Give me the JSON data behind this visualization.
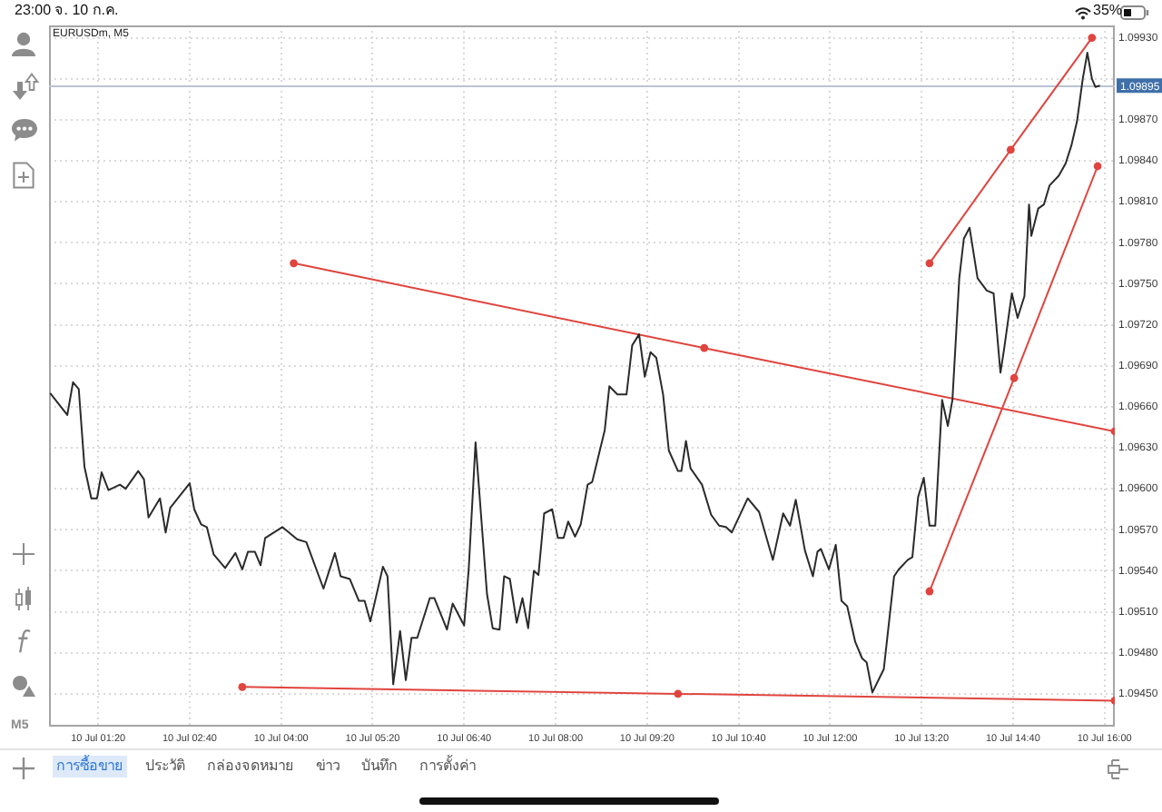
{
  "chart_data": {
    "type": "line",
    "title": "EURUSDm, M5",
    "xlim": [
      "--07-10T00:37",
      "--07-10T16:09"
    ],
    "xticks": [
      {
        "value": "--07-10T01:20",
        "label": "10 Jul 01:20"
      },
      {
        "value": "--07-10T02:40",
        "label": "10 Jul 02:40"
      },
      {
        "value": "--07-10T04:00",
        "label": "10 Jul 04:00"
      },
      {
        "value": "--07-10T05:20",
        "label": "10 Jul 05:20"
      },
      {
        "value": "--07-10T06:40",
        "label": "10 Jul 06:40"
      },
      {
        "value": "--07-10T08:00",
        "label": "10 Jul 08:00"
      },
      {
        "value": "--07-10T09:20",
        "label": "10 Jul 09:20"
      },
      {
        "value": "--07-10T10:40",
        "label": "10 Jul 10:40"
      },
      {
        "value": "--07-10T12:00",
        "label": "10 Jul 12:00"
      },
      {
        "value": "--07-10T13:20",
        "label": "10 Jul 13:20"
      },
      {
        "value": "--07-10T14:40",
        "label": "10 Jul 14:40"
      },
      {
        "value": "--07-10T16:00",
        "label": "10 Jul 16:00"
      }
    ],
    "ylim": [
      1.09426,
      1.09939
    ],
    "yticks": [
      {
        "value": 1.0945,
        "label": "1.09450"
      },
      {
        "value": 1.0948,
        "label": "1.09480"
      },
      {
        "value": 1.0951,
        "label": "1.09510"
      },
      {
        "value": 1.0954,
        "label": "1.09540"
      },
      {
        "value": 1.0957,
        "label": "1.09570"
      },
      {
        "value": 1.096,
        "label": "1.09600"
      },
      {
        "value": 1.0963,
        "label": "1.09630"
      },
      {
        "value": 1.0966,
        "label": "1.09660"
      },
      {
        "value": 1.0969,
        "label": "1.09690"
      },
      {
        "value": 1.0972,
        "label": "1.09720"
      },
      {
        "value": 1.0975,
        "label": "1.09750"
      },
      {
        "value": 1.0978,
        "label": "1.09780"
      },
      {
        "value": 1.0981,
        "label": "1.09810"
      },
      {
        "value": 1.0984,
        "label": "1.09840"
      },
      {
        "value": 1.0987,
        "label": "1.09870"
      },
      {
        "value": 1.099,
        "label": null
      },
      {
        "value": 1.0993,
        "label": "1.09930"
      }
    ],
    "grid": true,
    "series": [
      {
        "color": "#2b2b2b",
        "x": [
          "--07-10T00:38",
          "--07-10T00:53",
          "--07-10T00:58",
          "--07-10T01:03",
          "--07-10T01:08",
          "--07-10T01:14",
          "--07-10T01:19",
          "--07-10T01:23",
          "--07-10T01:29",
          "--07-10T01:39",
          "--07-10T01:44",
          "--07-10T01:55",
          "--07-10T02:00",
          "--07-10T02:04",
          "--07-10T02:14",
          "--07-10T02:19",
          "--07-10T02:23",
          "--07-10T02:40",
          "--07-10T02:44",
          "--07-10T02:50",
          "--07-10T02:55",
          "--07-10T03:01",
          "--07-10T03:11",
          "--07-10T03:20",
          "--07-10T03:26",
          "--07-10T03:31",
          "--07-10T03:37",
          "--07-10T03:42",
          "--07-10T03:46",
          "--07-10T04:01",
          "--07-10T04:14",
          "--07-10T04:22",
          "--07-10T04:37",
          "--07-10T04:47",
          "--07-10T04:52",
          "--07-10T05:00",
          "--07-10T05:08",
          "--07-10T05:13",
          "--07-10T05:18",
          "--07-10T05:29",
          "--07-10T05:33",
          "--07-10T05:38",
          "--07-10T05:44",
          "--07-10T05:49",
          "--07-10T05:54",
          "--07-10T05:59",
          "--07-10T06:10",
          "--07-10T06:14",
          "--07-10T06:25",
          "--07-10T06:30",
          "--07-10T06:40",
          "--07-10T06:44",
          "--07-10T06:50",
          "--07-10T07:00",
          "--07-10T07:05",
          "--07-10T07:11",
          "--07-10T07:15",
          "--07-10T07:20",
          "--07-10T07:26",
          "--07-10T07:31",
          "--07-10T07:36",
          "--07-10T07:41",
          "--07-10T07:45",
          "--07-10T07:50",
          "--07-10T07:57",
          "--07-10T08:02",
          "--07-10T08:07",
          "--07-10T08:11",
          "--07-10T08:17",
          "--07-10T08:22",
          "--07-10T08:28",
          "--07-10T08:32",
          "--07-10T08:43",
          "--07-10T08:47",
          "--07-10T08:54",
          "--07-10T09:02",
          "--07-10T09:07",
          "--07-10T09:13",
          "--07-10T09:18",
          "--07-10T09:23",
          "--07-10T09:28",
          "--07-10T09:34",
          "--07-10T09:39",
          "--07-10T09:47",
          "--07-10T09:50",
          "--07-10T09:54",
          "--07-10T09:58",
          "--07-10T10:08",
          "--07-10T10:16",
          "--07-10T10:23",
          "--07-10T10:29",
          "--07-10T10:34",
          "--07-10T10:48",
          "--07-10T10:58",
          "--07-10T11:10",
          "--07-10T11:19",
          "--07-10T11:25",
          "--07-10T11:30",
          "--07-10T11:38",
          "--07-10T11:45",
          "--07-10T11:49",
          "--07-10T11:52",
          "--07-10T11:59",
          "--07-10T12:05",
          "--07-10T12:10",
          "--07-10T12:15",
          "--07-10T12:22",
          "--07-10T12:28",
          "--07-10T12:32",
          "--07-10T12:37",
          "--07-10T12:47",
          "--07-10T12:56",
          "--07-10T13:00",
          "--07-10T13:08",
          "--07-10T13:12",
          "--07-10T13:17",
          "--07-10T13:22",
          "--07-10T13:27",
          "--07-10T13:32",
          "--07-10T13:38",
          "--07-10T13:43",
          "--07-10T13:47",
          "--07-10T13:53",
          "--07-10T13:57",
          "--07-10T14:02",
          "--07-10T14:09",
          "--07-10T14:17",
          "--07-10T14:23",
          "--07-10T14:29",
          "--07-10T14:32",
          "--07-10T14:39",
          "--07-10T14:44",
          "--07-10T14:50",
          "--07-10T14:54",
          "--07-10T14:56",
          "--07-10T15:02",
          "--07-10T15:07",
          "--07-10T15:12",
          "--07-10T15:20",
          "--07-10T15:26",
          "--07-10T15:31",
          "--07-10T15:36",
          "--07-10T15:41",
          "--07-10T15:45",
          "--07-10T15:49",
          "--07-10T15:52",
          "--07-10T15:56"
        ],
        "values": [
          1.0967,
          1.09654,
          1.09678,
          1.09673,
          1.09616,
          1.09593,
          1.09593,
          1.09612,
          1.09599,
          1.09603,
          1.096,
          1.09613,
          1.09607,
          1.09579,
          1.09593,
          1.09568,
          1.09586,
          1.09604,
          1.09585,
          1.09574,
          1.09572,
          1.09552,
          1.09542,
          1.09553,
          1.09541,
          1.09554,
          1.09554,
          1.09544,
          1.09564,
          1.09572,
          1.09563,
          1.09561,
          1.09527,
          1.09553,
          1.09536,
          1.09534,
          1.09518,
          1.09518,
          1.09503,
          1.09543,
          1.09536,
          1.09457,
          1.09496,
          1.0946,
          1.09491,
          1.09491,
          1.0952,
          1.0952,
          1.09497,
          1.09516,
          1.095,
          1.09541,
          1.09634,
          1.09523,
          1.09498,
          1.09497,
          1.09536,
          1.09534,
          1.09502,
          1.0952,
          1.09498,
          1.0954,
          1.09537,
          1.09582,
          1.09585,
          1.09564,
          1.09564,
          1.09576,
          1.09565,
          1.09574,
          1.09603,
          1.09605,
          1.09643,
          1.09675,
          1.09669,
          1.09669,
          1.09705,
          1.09713,
          1.09682,
          1.097,
          1.09696,
          1.09669,
          1.09628,
          1.09613,
          1.09613,
          1.09635,
          1.09615,
          1.09603,
          1.09581,
          1.09573,
          1.09572,
          1.09568,
          1.09593,
          1.09583,
          1.09548,
          1.09582,
          1.09573,
          1.09592,
          1.09555,
          1.09536,
          1.09554,
          1.09556,
          1.09541,
          1.09559,
          1.09518,
          1.09514,
          1.09488,
          1.09476,
          1.09473,
          1.09451,
          1.09468,
          1.09536,
          1.09541,
          1.09548,
          1.0955,
          1.09594,
          1.09608,
          1.09573,
          1.09573,
          1.09665,
          1.09646,
          1.09665,
          1.09754,
          1.09783,
          1.09791,
          1.09754,
          1.09745,
          1.09743,
          1.09685,
          1.09701,
          1.09743,
          1.09725,
          1.09741,
          1.09808,
          1.09785,
          1.09805,
          1.09808,
          1.09822,
          1.09829,
          1.09838,
          1.09851,
          1.09869,
          1.099,
          1.09919,
          1.099,
          1.09894,
          1.09895
        ]
      },
      {
        "type": "line",
        "color": "#e0443e",
        "marker": "circle",
        "x": [
          "--07-10T04:11",
          "--07-10T10:10",
          "--07-10T16:09"
        ],
        "values": [
          1.09765,
          1.09703,
          1.09642
        ]
      },
      {
        "type": "line",
        "color": "#e0443e",
        "marker": "circle",
        "x": [
          "--07-10T03:26",
          "--07-10T09:47",
          "--07-10T16:09"
        ],
        "values": [
          1.09455,
          1.0945,
          1.09445
        ]
      },
      {
        "type": "line",
        "color": "#e0443e",
        "marker": "circle",
        "x": [
          "--07-10T13:27",
          "--07-10T14:38",
          "--07-10T15:49"
        ],
        "values": [
          1.09765,
          1.09848,
          1.0993
        ]
      },
      {
        "type": "line",
        "color": "#e0443e",
        "marker": "circle",
        "x": [
          "--07-10T13:27",
          "--07-10T14:41",
          "--07-10T15:54"
        ],
        "values": [
          1.09525,
          1.09681,
          1.09836
        ]
      }
    ],
    "ref_lines": [
      {
        "axis": "y",
        "value": 1.09895,
        "label": "1.09895",
        "color": "#b9c4d3"
      }
    ],
    "annotations": [
      "23:00  จ. 10 ก.ค.",
      "35%",
      "M5",
      "การซื้อขาย",
      "ประวัติ",
      "กล่องจดหมาย",
      "ข่าว",
      "บันทึก",
      "การตั้งค่า"
    ]
  }
}
